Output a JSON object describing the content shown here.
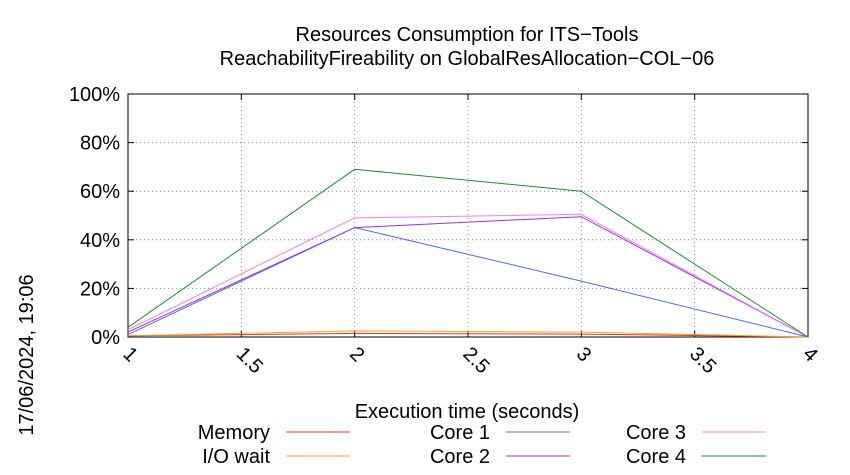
{
  "chart_data": {
    "type": "line",
    "title": "Resources Consumption for ITS−Tools",
    "subtitle": "ReachabilityFireability on GlobalResAllocation−COL−06",
    "xlabel": "Execution time (seconds)",
    "ylabel": "",
    "xlim": [
      1,
      4
    ],
    "ylim": [
      0,
      100
    ],
    "x_ticks": [
      "1",
      "1.5",
      "2",
      "2.5",
      "3",
      "3.5",
      "4"
    ],
    "y_ticks": [
      "0%",
      "20%",
      "40%",
      "60%",
      "80%",
      "100%"
    ],
    "grid": true,
    "legend_position": "bottom",
    "x": [
      1,
      2,
      3,
      4
    ],
    "series": [
      {
        "name": "Memory",
        "color": "#e8321e",
        "values": [
          0.5,
          1.5,
          1.2,
          0
        ]
      },
      {
        "name": "I/O wait",
        "color": "#f5a623",
        "values": [
          0.5,
          2.5,
          2,
          0
        ]
      },
      {
        "name": "Core 1",
        "color": "#4c6fe0",
        "values": [
          1,
          45,
          23,
          0
        ]
      },
      {
        "name": "Core 2",
        "color": "#9b30e0",
        "values": [
          2,
          45,
          49.5,
          0
        ]
      },
      {
        "name": "Core 3",
        "color": "#f07df0",
        "values": [
          3,
          49,
          50.5,
          0
        ]
      },
      {
        "name": "Core 4",
        "color": "#1f8f2f",
        "values": [
          4,
          69,
          60,
          0
        ]
      }
    ]
  },
  "timestamp": "17/06/2024, 19:06"
}
